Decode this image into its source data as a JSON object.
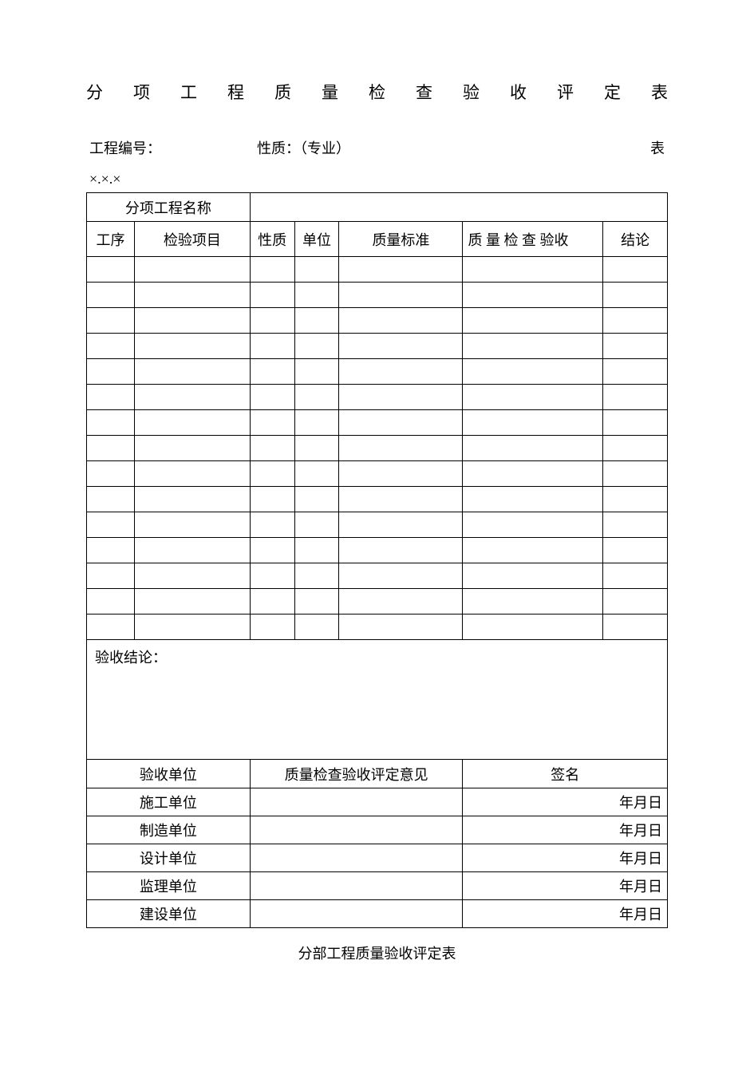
{
  "title": "分 项 工 程 质 量 检 查 验 收 评 定 表",
  "meta": {
    "project_no_label": "工程编号：",
    "nature_label": "性质：（专业）",
    "table_label": "表",
    "table_code": "×.×.×"
  },
  "table1": {
    "header": {
      "sub_project_name": "分项工程名称",
      "procedure": "工序",
      "inspection_item": "检验项目",
      "nature": "性质",
      "unit": "单位",
      "quality_standard": "质量标准",
      "quality_inspection": "质 量 检 查 验收",
      "conclusion": "结论"
    },
    "empty_rows": 15,
    "acceptance_conclusion_label": "验收结论：",
    "columns": {
      "col1_w": 58,
      "col2_w": 140,
      "col3_w": 54,
      "col4_w": 54,
      "col5_w": 150,
      "col6_w": 170,
      "col7_w": 78
    }
  },
  "table2": {
    "header": {
      "acceptance_unit": "验收单位",
      "opinion": "质量检查验收评定意见",
      "signature": "签名"
    },
    "rows": [
      {
        "label": "施工单位",
        "date": "年月日"
      },
      {
        "label": "制造单位",
        "date": "年月日"
      },
      {
        "label": "设计单位",
        "date": "年月日"
      },
      {
        "label": "监理单位",
        "date": "年月日"
      },
      {
        "label": "建设单位",
        "date": "年月日"
      }
    ]
  },
  "footer_title": "分部工程质量验收评定表",
  "style": {
    "page_bg": "#ffffff",
    "text_color": "#000000",
    "border_color": "#000000",
    "title_fontsize": 21,
    "body_fontsize": 18
  }
}
